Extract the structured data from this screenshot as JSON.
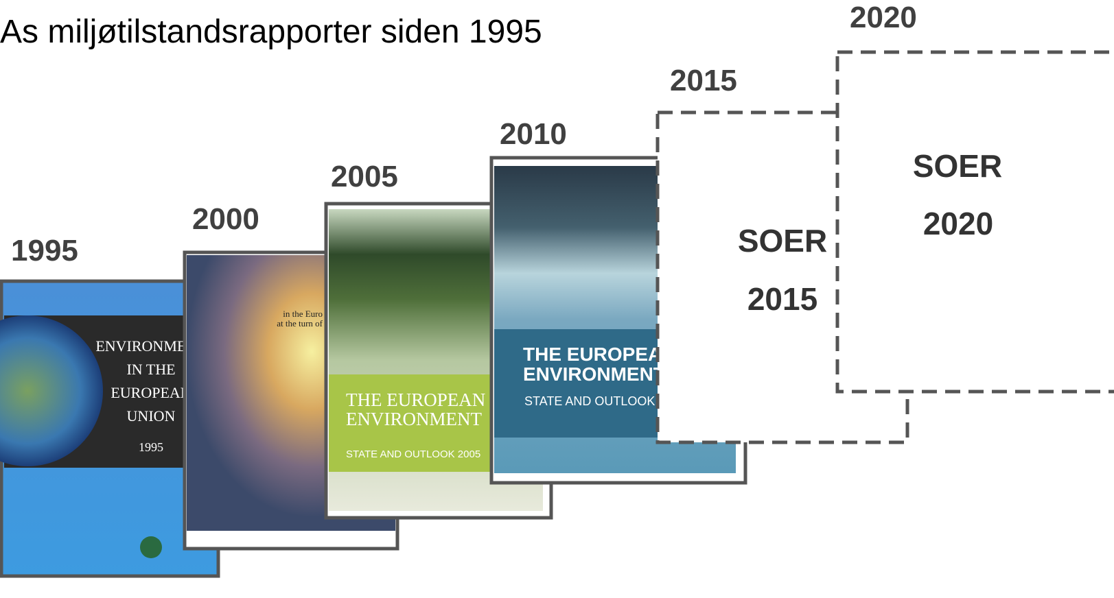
{
  "subtitle": "As miljøtilstandsrapporter siden 1995",
  "reports": [
    {
      "year": "1995",
      "cover_lines": [
        "ENVIRONMENT",
        "IN THE",
        "EUROPEAN",
        "UNION",
        "1995"
      ]
    },
    {
      "year": "2000",
      "cover_lines": [
        "in the Euro",
        "at the turn of"
      ]
    },
    {
      "year": "2005",
      "cover_lines": [
        "THE EUROPEAN",
        "ENVIRONMENT",
        "STATE AND OUTLOOK 2005"
      ]
    },
    {
      "year": "2010",
      "cover_lines": [
        "THE EUROPEAN",
        "ENVIRONMENT",
        "STATE AND OUTLOOK"
      ]
    },
    {
      "year": "2015",
      "cover_lines": [
        "SOER",
        "2015"
      ]
    },
    {
      "year": "2020",
      "cover_lines": [
        "SOER",
        "2020"
      ]
    }
  ]
}
